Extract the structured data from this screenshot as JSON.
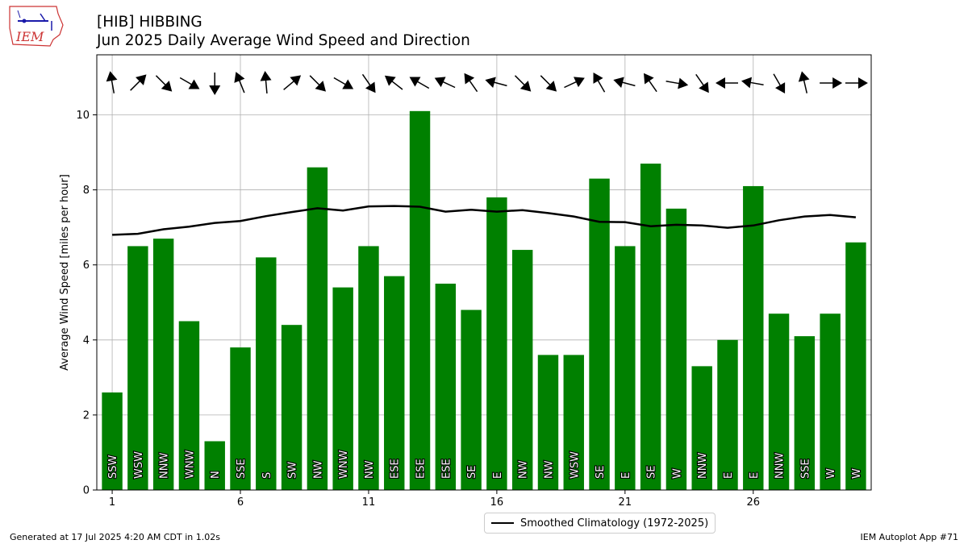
{
  "header": {
    "logo_text": "IEM",
    "title_line1": "[HIB] HIBBING",
    "title_line2": "Jun 2025 Daily Average Wind Speed and Direction"
  },
  "footer": {
    "generated": "Generated at 17 Jul 2025 4:20 AM CDT in 1.02s",
    "app": "IEM Autoplot App #71"
  },
  "legend": {
    "climatology_label": "Smoothed Climatology (1972-2025)"
  },
  "colors": {
    "bar": "#008000",
    "climatology_line": "#000000",
    "grid": "#b0b0b0"
  },
  "chart_data": {
    "type": "bar",
    "title": "[HIB] HIBBING Jun 2025 Daily Average Wind Speed and Direction",
    "ylabel": "Average Wind Speed [miles per hour]",
    "xlabel": "",
    "ylim": [
      0,
      11.6
    ],
    "xlim": [
      0.4,
      30.6
    ],
    "x_ticks": [
      1,
      6,
      11,
      16,
      21,
      26
    ],
    "y_ticks": [
      0,
      2,
      4,
      6,
      8,
      10
    ],
    "grid": true,
    "legend_position": "bottom-center",
    "days": [
      1,
      2,
      3,
      4,
      5,
      6,
      7,
      8,
      9,
      10,
      11,
      12,
      13,
      14,
      15,
      16,
      17,
      18,
      19,
      20,
      21,
      22,
      23,
      24,
      25,
      26,
      27,
      28,
      29,
      30
    ],
    "series": [
      {
        "name": "Average Wind Speed",
        "type": "bar",
        "values": [
          2.6,
          6.5,
          6.7,
          4.5,
          1.3,
          3.8,
          6.2,
          4.4,
          8.6,
          5.4,
          6.5,
          5.7,
          10.1,
          5.5,
          4.8,
          7.8,
          6.4,
          3.6,
          3.6,
          8.3,
          6.5,
          8.7,
          7.5,
          3.3,
          4.0,
          8.1,
          4.7,
          4.1,
          4.7,
          6.6
        ]
      },
      {
        "name": "Smoothed Climatology (1972-2025)",
        "type": "line",
        "values": [
          6.8,
          6.83,
          6.95,
          7.02,
          7.12,
          7.17,
          7.3,
          7.41,
          7.51,
          7.45,
          7.56,
          7.57,
          7.55,
          7.42,
          7.47,
          7.42,
          7.46,
          7.38,
          7.29,
          7.15,
          7.14,
          7.03,
          7.07,
          7.05,
          6.99,
          7.05,
          7.19,
          7.29,
          7.33,
          7.27
        ]
      }
    ],
    "directions": [
      "SSW",
      "WSW",
      "NNW",
      "WNW",
      "N",
      "SSE",
      "S",
      "SW",
      "NW",
      "WNW",
      "NW",
      "ESE",
      "ESE",
      "ESE",
      "SE",
      "E",
      "NW",
      "NW",
      "WSW",
      "SE",
      "E",
      "SE",
      "W",
      "NNW",
      "E",
      "E",
      "NNW",
      "SSE",
      "W",
      "W"
    ],
    "arrow_angles_deg": [
      100,
      45,
      -45,
      -30,
      -90,
      112,
      95,
      40,
      -45,
      -30,
      -55,
      142,
      150,
      155,
      125,
      165,
      -45,
      -45,
      25,
      120,
      165,
      125,
      -10,
      -55,
      180,
      170,
      -60,
      103,
      0,
      0
    ]
  }
}
